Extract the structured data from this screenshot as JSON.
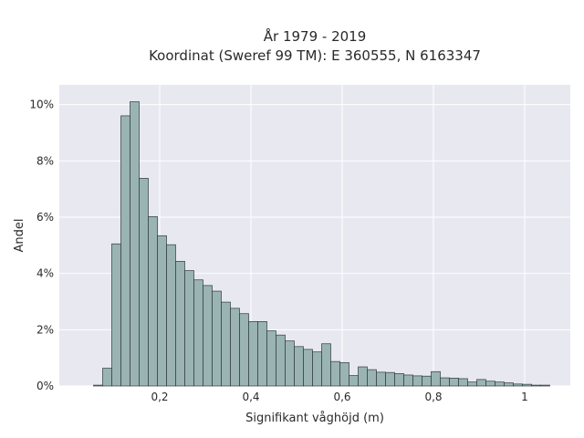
{
  "chart_data": {
    "type": "bar",
    "title_line1": "År 1979 - 2019",
    "title_line2": "Koordinat (Sweref 99 TM): E 360555, N 6163347",
    "xlabel": "Signifikant våghöjd (m)",
    "ylabel": "Andel",
    "xlim": [
      -0.02,
      1.1
    ],
    "ylim": [
      0,
      10.7
    ],
    "grid": true,
    "colors": {
      "plot_bg": "#e8e8f0",
      "bar_fill": "#9ab4b3",
      "bar_edge": "#2f3b3b",
      "grid": "#ffffff"
    },
    "x_ticks": [
      {
        "value": 0.2,
        "label": "0,2"
      },
      {
        "value": 0.4,
        "label": "0,4"
      },
      {
        "value": 0.6,
        "label": "0,6"
      },
      {
        "value": 0.8,
        "label": "0,8"
      },
      {
        "value": 1.0,
        "label": "1"
      }
    ],
    "y_ticks": [
      {
        "value": 0,
        "label": "0%"
      },
      {
        "value": 2,
        "label": "2%"
      },
      {
        "value": 4,
        "label": "4%"
      },
      {
        "value": 6,
        "label": "6%"
      },
      {
        "value": 8,
        "label": "8%"
      },
      {
        "value": 10,
        "label": "10%"
      }
    ],
    "bin_start": 0.055,
    "bin_width": 0.02,
    "values": [
      0.03,
      0.63,
      5.05,
      9.6,
      10.1,
      7.38,
      6.02,
      5.34,
      5.02,
      4.43,
      4.1,
      3.77,
      3.57,
      3.37,
      2.98,
      2.76,
      2.57,
      2.29,
      2.29,
      1.96,
      1.81,
      1.6,
      1.4,
      1.3,
      1.21,
      1.5,
      0.87,
      0.83,
      0.37,
      0.68,
      0.58,
      0.49,
      0.48,
      0.44,
      0.39,
      0.36,
      0.35,
      0.51,
      0.29,
      0.28,
      0.26,
      0.14,
      0.23,
      0.17,
      0.14,
      0.11,
      0.07,
      0.06,
      0.03,
      0.03
    ]
  }
}
